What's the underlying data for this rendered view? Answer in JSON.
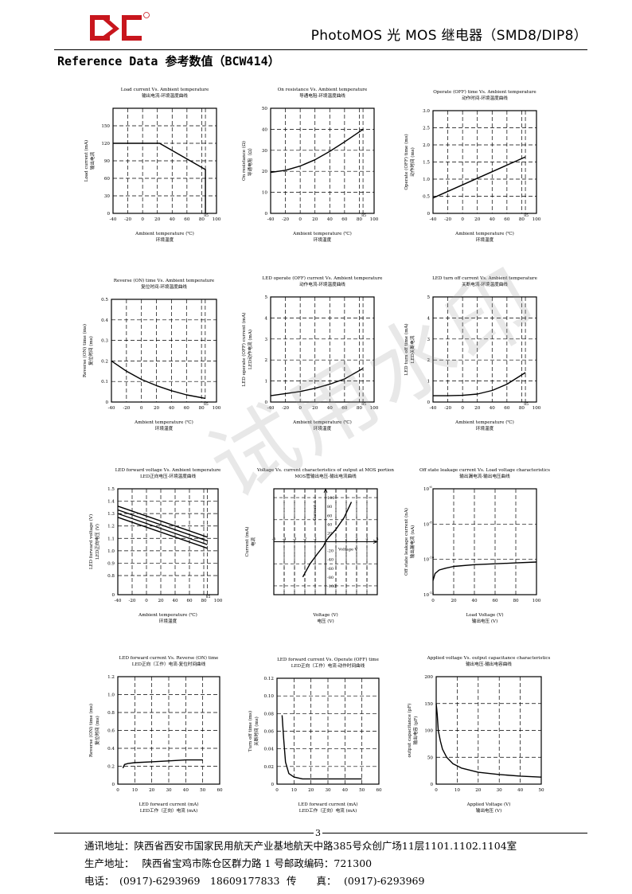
{
  "header": {
    "logo_name": "logo-icon",
    "doc_title": "PhotoMOS 光 MOS 继电器（SMD8/DIP8）"
  },
  "section_title": "Reference Data 参考数值（BCW414）",
  "watermark": "试用水印",
  "chart_data": [
    {
      "id": "c1",
      "type": "line",
      "title": "Load current Vs. Ambient temperature",
      "subtitle": "输出电流-环境温度曲线",
      "xlabel": "Ambient temperature (℃)",
      "xlabel2": "环境温度",
      "ylabel": "Load current (mA)",
      "ylabel2": "输出电流",
      "xlim": [
        -40,
        100
      ],
      "ylim": [
        0,
        180
      ],
      "xticks": [
        -40,
        -20,
        0,
        20,
        40,
        60,
        80,
        100
      ],
      "yticks": [
        0,
        30,
        60,
        90,
        120,
        150
      ],
      "extra_xtick": "85",
      "extra_x": 85,
      "series": [
        {
          "x": [
            -40,
            23,
            85,
            85
          ],
          "y": [
            120,
            120,
            75,
            0
          ]
        }
      ]
    },
    {
      "id": "c2",
      "type": "line",
      "title": "On resistance Vs. Ambient temperature",
      "subtitle": "导通电阻-环境温度曲线",
      "xlabel": "Ambient temperature (℃)",
      "xlabel2": "环境温度",
      "ylabel": "On resistance (Ω)",
      "ylabel2": "导通电阻（Ω）",
      "xlim": [
        -40,
        100
      ],
      "ylim": [
        0,
        50
      ],
      "xticks": [
        -40,
        -20,
        0,
        20,
        40,
        60,
        80,
        100
      ],
      "yticks": [
        0,
        10,
        20,
        30,
        40,
        50
      ],
      "extra_xtick": "85",
      "extra_x": 85,
      "series": [
        {
          "x": [
            -40,
            -20,
            0,
            20,
            40,
            60,
            85
          ],
          "y": [
            19.5,
            20.5,
            22.5,
            25.5,
            29.5,
            34,
            40
          ]
        }
      ]
    },
    {
      "id": "c3",
      "type": "line",
      "title": "Operate (OFF) time Vs. Ambient temperature",
      "subtitle": "动作时间-环境温度曲线",
      "xlabel": "Ambient temperature (℃)",
      "xlabel2": "环境温度",
      "ylabel": "Operate (OFF) time (ms)",
      "ylabel2": "动作时间 (ms)",
      "xlim": [
        -40,
        100
      ],
      "ylim": [
        0,
        3.0
      ],
      "xticks": [
        -40,
        -20,
        0,
        20,
        40,
        60,
        80,
        100
      ],
      "yticks": [
        "0",
        "0.5",
        "1.0",
        "1.5",
        "2.0",
        "2.5",
        "3.0"
      ],
      "extra_xtick": "85",
      "extra_x": 85,
      "series": [
        {
          "x": [
            -40,
            85
          ],
          "y": [
            0.45,
            1.65
          ]
        }
      ]
    },
    {
      "id": "c4",
      "type": "line",
      "title": "Reverse (ON) time Vs. Ambient temperature",
      "subtitle": "复位时间-环境温度曲线",
      "xlabel": "Ambient temperature (℃)",
      "xlabel2": "环境温度",
      "ylabel": "Reverse (ON) time (ms)",
      "ylabel2": "复位时间 (ms)",
      "xlim": [
        -40,
        100
      ],
      "ylim": [
        0,
        0.5
      ],
      "xticks": [
        -40,
        -20,
        0,
        20,
        40,
        60,
        80,
        100
      ],
      "yticks": [
        "0",
        "0.1",
        "0.2",
        "0.3",
        "0.4",
        "0.5"
      ],
      "extra_xtick": "85",
      "extra_x": 85,
      "series": [
        {
          "x": [
            -40,
            -20,
            0,
            20,
            40,
            60,
            85
          ],
          "y": [
            0.2,
            0.15,
            0.11,
            0.08,
            0.055,
            0.035,
            0.018
          ]
        }
      ]
    },
    {
      "id": "c5",
      "type": "line",
      "title": "LED operate (OFF) current Vs. Ambient temperature",
      "subtitle": "动作电流-环境温度曲线",
      "xlabel": "Ambient temperature (℃)",
      "xlabel2": "环境温度",
      "ylabel": "LED operate (OFF) current (mA)",
      "ylabel2": "LED动作电流 (mA)",
      "xlim": [
        -40,
        100
      ],
      "ylim": [
        0,
        5
      ],
      "xticks": [
        -40,
        -20,
        0,
        20,
        40,
        60,
        80,
        100
      ],
      "yticks": [
        0,
        1,
        2,
        3,
        4,
        5
      ],
      "extra_xtick": "85",
      "extra_x": 85,
      "series": [
        {
          "x": [
            -40,
            -20,
            0,
            20,
            40,
            60,
            85
          ],
          "y": [
            0.3,
            0.4,
            0.5,
            0.65,
            0.85,
            1.1,
            1.6
          ]
        }
      ]
    },
    {
      "id": "c6",
      "type": "line",
      "title": "LED turn off current Vs. Ambient temperature",
      "subtitle": "关断电流-环境温度曲线",
      "xlabel": "Ambient temperature (℃)",
      "xlabel2": "环境温度",
      "ylabel": "LED turn off time (mA)",
      "ylabel2": "LED关断电流",
      "xlim": [
        -40,
        100
      ],
      "ylim": [
        0,
        5
      ],
      "xticks": [
        -40,
        -20,
        0,
        20,
        40,
        60,
        80,
        100
      ],
      "yticks": [
        0,
        1,
        2,
        3,
        4,
        5
      ],
      "extra_xtick": "85",
      "extra_x": 85,
      "series": [
        {
          "x": [
            -40,
            -20,
            0,
            20,
            40,
            60,
            85
          ],
          "y": [
            0.3,
            0.3,
            0.32,
            0.38,
            0.55,
            0.85,
            1.4
          ]
        }
      ]
    },
    {
      "id": "c7",
      "type": "line",
      "title": "LED forward voltage Vs. Ambient temperature",
      "subtitle": "LED正向电压-环境温度曲线",
      "xlabel": "Ambient temperature (℃)",
      "xlabel2": "环境温度",
      "ylabel": "LED forward voltage (V)",
      "ylabel2": "LED正向电压 (V)",
      "xlim": [
        -40,
        100
      ],
      "ylim": [
        0,
        1.5
      ],
      "xticks": [
        -40,
        -20,
        0,
        20,
        40,
        60,
        80,
        100
      ],
      "yticks": [
        "0",
        "0.8",
        "0.9",
        "1.0",
        "1.1",
        "1.2",
        "1.3",
        "1.4",
        "1.5"
      ],
      "extra_xtick": "85",
      "extra_x": 85,
      "series": [
        {
          "x": [
            -40,
            85
          ],
          "y": [
            1.36,
            1.11
          ]
        },
        {
          "x": [
            -40,
            85
          ],
          "y": [
            1.33,
            1.08
          ]
        },
        {
          "x": [
            -40,
            85
          ],
          "y": [
            1.3,
            1.05
          ]
        },
        {
          "x": [
            -40,
            85
          ],
          "y": [
            1.27,
            1.02
          ]
        }
      ]
    },
    {
      "id": "c8",
      "type": "line",
      "title": "Voltage Vs. current characteristics of output at MOS portion",
      "subtitle": "MOS管输出电压-输出电流曲线",
      "xlabel": "Voltage (V)",
      "xlabel2": "电压 (V)",
      "ylabel": "Current (mA)",
      "ylabel2": "电流",
      "xlim": [
        -5,
        5
      ],
      "ylim": [
        -120,
        120
      ],
      "xticks": [
        "-5",
        "-4",
        "-3",
        "-2",
        "-1",
        "1",
        "2",
        "3",
        "4",
        "5"
      ],
      "yticks": [
        "-100",
        "-80",
        "-60",
        "-40",
        "-20",
        "20",
        "40",
        "60",
        "80",
        "100",
        "120"
      ],
      "inner_xlabel": "Voltage V",
      "inner_ylabel": "Current A",
      "series": [
        {
          "x": [
            -2.2,
            -1.5,
            -0.8,
            -0.2,
            0,
            0.3,
            1.0,
            1.8,
            2.5
          ],
          "y": [
            -80,
            -50,
            -28,
            -10,
            0,
            10,
            28,
            55,
            90
          ]
        }
      ]
    },
    {
      "id": "c9",
      "type": "line",
      "title": "Off state leakage current Vs. Load voltage characteristics",
      "subtitle": "输出漏电流-输出电压曲线",
      "xlabel": "Load Voltage (V)",
      "xlabel2": "输出电压 (V)",
      "ylabel": "Off state leakage current (nA)",
      "ylabel2": "输出漏电流 (nA)",
      "xlim": [
        0,
        100
      ],
      "ylim_log": [
        -12,
        -6
      ],
      "xticks": [
        0,
        20,
        40,
        60,
        80,
        100
      ],
      "yticks": [
        "10",
        "10",
        "10",
        "10"
      ],
      "ytick_exps": [
        "-6",
        "-8",
        "-10",
        "-12"
      ],
      "series": [
        {
          "x": [
            0,
            2,
            6,
            12,
            20,
            40,
            60,
            80,
            100
          ],
          "y": [
            -11.2,
            -10.8,
            -10.6,
            -10.5,
            -10.4,
            -10.3,
            -10.25,
            -10.2,
            -10.15
          ]
        }
      ]
    },
    {
      "id": "c10",
      "type": "line",
      "title": "LED forward current Vs. Reverse (ON) time",
      "subtitle": "LED正向（工作）电流-复位时间曲线",
      "xlabel": "LED forward current (mA)",
      "xlabel2": "LED工作（正向）电流 (mA)",
      "ylabel": "Reverse (ON) time (ms)",
      "ylabel2": "复位时间 (ms)",
      "xlim": [
        0,
        60
      ],
      "ylim": [
        0,
        1.2
      ],
      "xticks": [
        0,
        10,
        20,
        30,
        40,
        50,
        60
      ],
      "yticks": [
        "0",
        "0.2",
        "0.4",
        "0.6",
        "0.8",
        "1.0",
        "1.2"
      ],
      "series": [
        {
          "x": [
            3,
            4,
            6,
            10,
            20,
            30,
            40,
            50
          ],
          "y": [
            0.18,
            0.22,
            0.23,
            0.24,
            0.25,
            0.26,
            0.27,
            0.27
          ]
        }
      ]
    },
    {
      "id": "c11",
      "type": "line",
      "title": "LED forward current Vs. Operate (OFF) time",
      "subtitle": "LED正向（工作）电流-动作时间曲线",
      "xlabel": "LED forward current (mA)",
      "xlabel2": "LED工作（正向）电流 (mA)",
      "ylabel": "Turn off time (ms)",
      "ylabel2": "关断时间 (ms)",
      "xlim": [
        0,
        60
      ],
      "ylim": [
        0,
        0.12
      ],
      "xticks": [
        0,
        10,
        20,
        30,
        40,
        50,
        60
      ],
      "yticks": [
        "0",
        "0.02",
        "0.04",
        "0.06",
        "0.08",
        "0.10",
        "0.12"
      ],
      "series": [
        {
          "x": [
            3,
            4,
            5,
            7,
            10,
            15,
            20,
            30,
            40,
            50
          ],
          "y": [
            0.078,
            0.05,
            0.025,
            0.012,
            0.008,
            0.006,
            0.006,
            0.006,
            0.006,
            0.006
          ]
        }
      ]
    },
    {
      "id": "c12",
      "type": "line",
      "title": "Applied voltage Vs. output capacitance characteristics",
      "subtitle": "输出电压-输出电容曲线",
      "xlabel": "Applied Voltage (V)",
      "xlabel2": "输出电压 (V)",
      "ylabel": "output capacitance (pF)",
      "ylabel2": "输出电容 (pF)",
      "xlim": [
        0,
        50
      ],
      "ylim": [
        0,
        200
      ],
      "xticks": [
        0,
        10,
        20,
        30,
        40,
        50
      ],
      "yticks": [
        0,
        50,
        100,
        150,
        200
      ],
      "series": [
        {
          "x": [
            0,
            0.5,
            1,
            2,
            3,
            5,
            8,
            12,
            20,
            30,
            40,
            50
          ],
          "y": [
            150,
            130,
            100,
            80,
            65,
            50,
            38,
            30,
            22,
            18,
            15,
            13
          ]
        }
      ]
    }
  ],
  "footer": {
    "page_number": "3",
    "address_label": "通讯地址：",
    "address_value": "陕西省西安市国家民用航天产业基地航天中路385号众创广场11层1101.1102.1104室",
    "factory_label": "生产地址：",
    "factory_value": "陕西省宝鸡市陈仓区群力路 1 号邮政编码：721300",
    "phone_label": "电话：",
    "phone_value": "(0917)-6293969　18609177833",
    "fax_label": "传　　真：",
    "fax_value": "(0917)-6293969"
  }
}
